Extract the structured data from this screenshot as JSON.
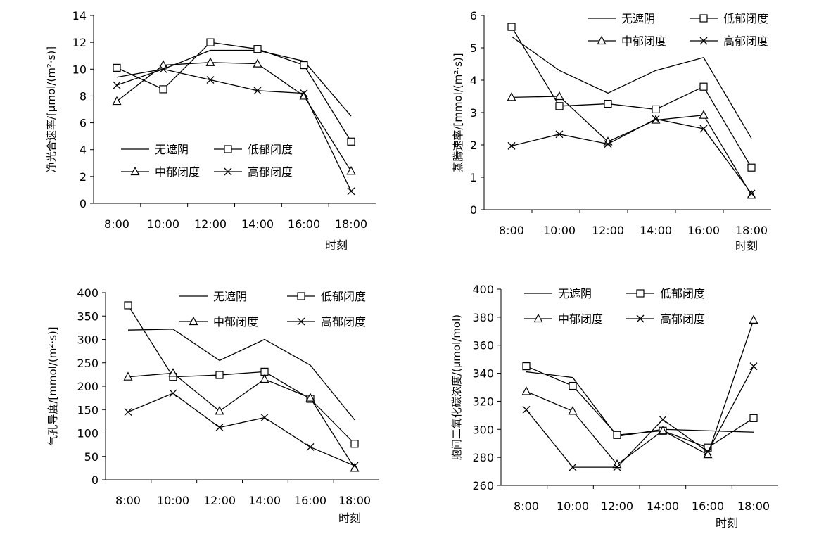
{
  "chart_data": [
    {
      "type": "line",
      "ylabel": "净光合速率/[μmol/(m²·s)]",
      "xlabel": "时刻",
      "categories": [
        "8:00",
        "10:00",
        "12:00",
        "14:00",
        "16:00",
        "18:00"
      ],
      "ylim": [
        0,
        14
      ],
      "yticks": [
        "0",
        "2",
        "4",
        "6",
        "8",
        "10",
        "12",
        "14"
      ],
      "series": [
        {
          "name": "无遮阴",
          "marker": "none",
          "values": [
            9.4,
            10.0,
            11.4,
            11.4,
            10.6,
            6.5
          ]
        },
        {
          "name": "低郁闭度",
          "marker": "square",
          "values": [
            10.1,
            8.5,
            12.0,
            11.5,
            10.3,
            4.6
          ]
        },
        {
          "name": "中郁闭度",
          "marker": "triangle",
          "values": [
            7.6,
            10.3,
            10.5,
            10.4,
            8.0,
            2.4
          ]
        },
        {
          "name": "高郁闭度",
          "marker": "cross",
          "values": [
            8.8,
            10.0,
            9.2,
            8.4,
            8.2,
            0.9
          ]
        }
      ]
    },
    {
      "type": "line",
      "ylabel": "蒸腾速率/[mmol/(m²·s)]",
      "xlabel": "时刻",
      "categories": [
        "8:00",
        "10:00",
        "12:00",
        "14:00",
        "16:00",
        "18:00"
      ],
      "ylim": [
        0,
        6
      ],
      "yticks": [
        "0",
        "1",
        "2",
        "3",
        "4",
        "5",
        "6"
      ],
      "series": [
        {
          "name": "无遮阴",
          "marker": "none",
          "values": [
            5.35,
            4.3,
            3.6,
            4.3,
            4.7,
            2.2
          ]
        },
        {
          "name": "低郁闭度",
          "marker": "square",
          "values": [
            5.65,
            3.2,
            3.27,
            3.1,
            3.8,
            1.3
          ]
        },
        {
          "name": "中郁闭度",
          "marker": "triangle",
          "values": [
            3.47,
            3.5,
            2.1,
            2.77,
            2.92,
            0.45
          ]
        },
        {
          "name": "高郁闭度",
          "marker": "cross",
          "values": [
            1.97,
            2.33,
            2.03,
            2.8,
            2.5,
            0.5
          ]
        }
      ]
    },
    {
      "type": "line",
      "ylabel": "气孔导度/[mmol/(m²·s)]",
      "xlabel": "时刻",
      "categories": [
        "8:00",
        "10:00",
        "12:00",
        "14:00",
        "16:00",
        "18:00"
      ],
      "ylim": [
        0,
        400
      ],
      "yticks": [
        "0",
        "50",
        "100",
        "150",
        "200",
        "250",
        "300",
        "350",
        "400"
      ],
      "series": [
        {
          "name": "无遮阴",
          "marker": "none",
          "values": [
            320,
            322,
            255,
            300,
            245,
            128
          ]
        },
        {
          "name": "低郁闭度",
          "marker": "square",
          "values": [
            373,
            220,
            224,
            231,
            173,
            77
          ]
        },
        {
          "name": "中郁闭度",
          "marker": "triangle",
          "values": [
            220,
            228,
            147,
            215,
            175,
            25
          ]
        },
        {
          "name": "高郁闭度",
          "marker": "cross",
          "values": [
            145,
            185,
            112,
            133,
            70,
            30
          ]
        }
      ]
    },
    {
      "type": "line",
      "ylabel": "胞间二氧化碳浓度/(μmol/mol)",
      "xlabel": "时刻",
      "categories": [
        "8:00",
        "10:00",
        "12:00",
        "14:00",
        "16:00",
        "18:00"
      ],
      "ylim": [
        260,
        400
      ],
      "yticks": [
        "260",
        "280",
        "300",
        "320",
        "340",
        "360",
        "380",
        "400"
      ],
      "series": [
        {
          "name": "无遮阴",
          "marker": "none",
          "values": [
            341,
            337,
            295,
            300,
            299,
            298
          ]
        },
        {
          "name": "低郁闭度",
          "marker": "square",
          "values": [
            345,
            331,
            296,
            299,
            287,
            308
          ]
        },
        {
          "name": "中郁闭度",
          "marker": "triangle",
          "values": [
            327,
            313,
            275,
            299,
            282,
            378
          ]
        },
        {
          "name": "高郁闭度",
          "marker": "cross",
          "values": [
            314,
            273,
            273,
            307,
            284,
            345
          ]
        }
      ]
    }
  ]
}
